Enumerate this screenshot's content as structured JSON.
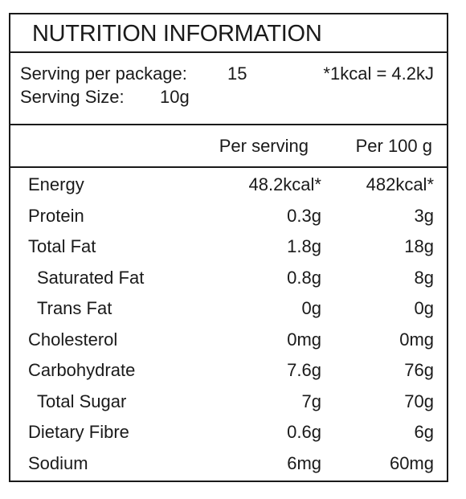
{
  "title": "NUTRITION INFORMATION",
  "serving": {
    "per_package_label": "Serving per package:",
    "per_package_value": "15",
    "conversion": "*1kcal = 4.2kJ",
    "size_label": "Serving Size:",
    "size_value": "10g"
  },
  "columns": {
    "per_serving": "Per serving",
    "per_100g": "Per 100 g"
  },
  "rows": [
    {
      "name": "Energy",
      "per_serving": "48.2kcal*",
      "per_100g": "482kcal*",
      "indent": false
    },
    {
      "name": "Protein",
      "per_serving": "0.3g",
      "per_100g": "3g",
      "indent": false
    },
    {
      "name": "Total Fat",
      "per_serving": "1.8g",
      "per_100g": "18g",
      "indent": false
    },
    {
      "name": "Saturated Fat",
      "per_serving": "0.8g",
      "per_100g": "8g",
      "indent": true
    },
    {
      "name": "Trans Fat",
      "per_serving": "0g",
      "per_100g": "0g",
      "indent": true
    },
    {
      "name": "Cholesterol",
      "per_serving": "0mg",
      "per_100g": "0mg",
      "indent": false
    },
    {
      "name": "Carbohydrate",
      "per_serving": "7.6g",
      "per_100g": "76g",
      "indent": false
    },
    {
      "name": "Total Sugar",
      "per_serving": "7g",
      "per_100g": "70g",
      "indent": true
    },
    {
      "name": "Dietary Fibre",
      "per_serving": "0.6g",
      "per_100g": "6g",
      "indent": false
    },
    {
      "name": "Sodium",
      "per_serving": "6mg",
      "per_100g": "60mg",
      "indent": false
    }
  ]
}
